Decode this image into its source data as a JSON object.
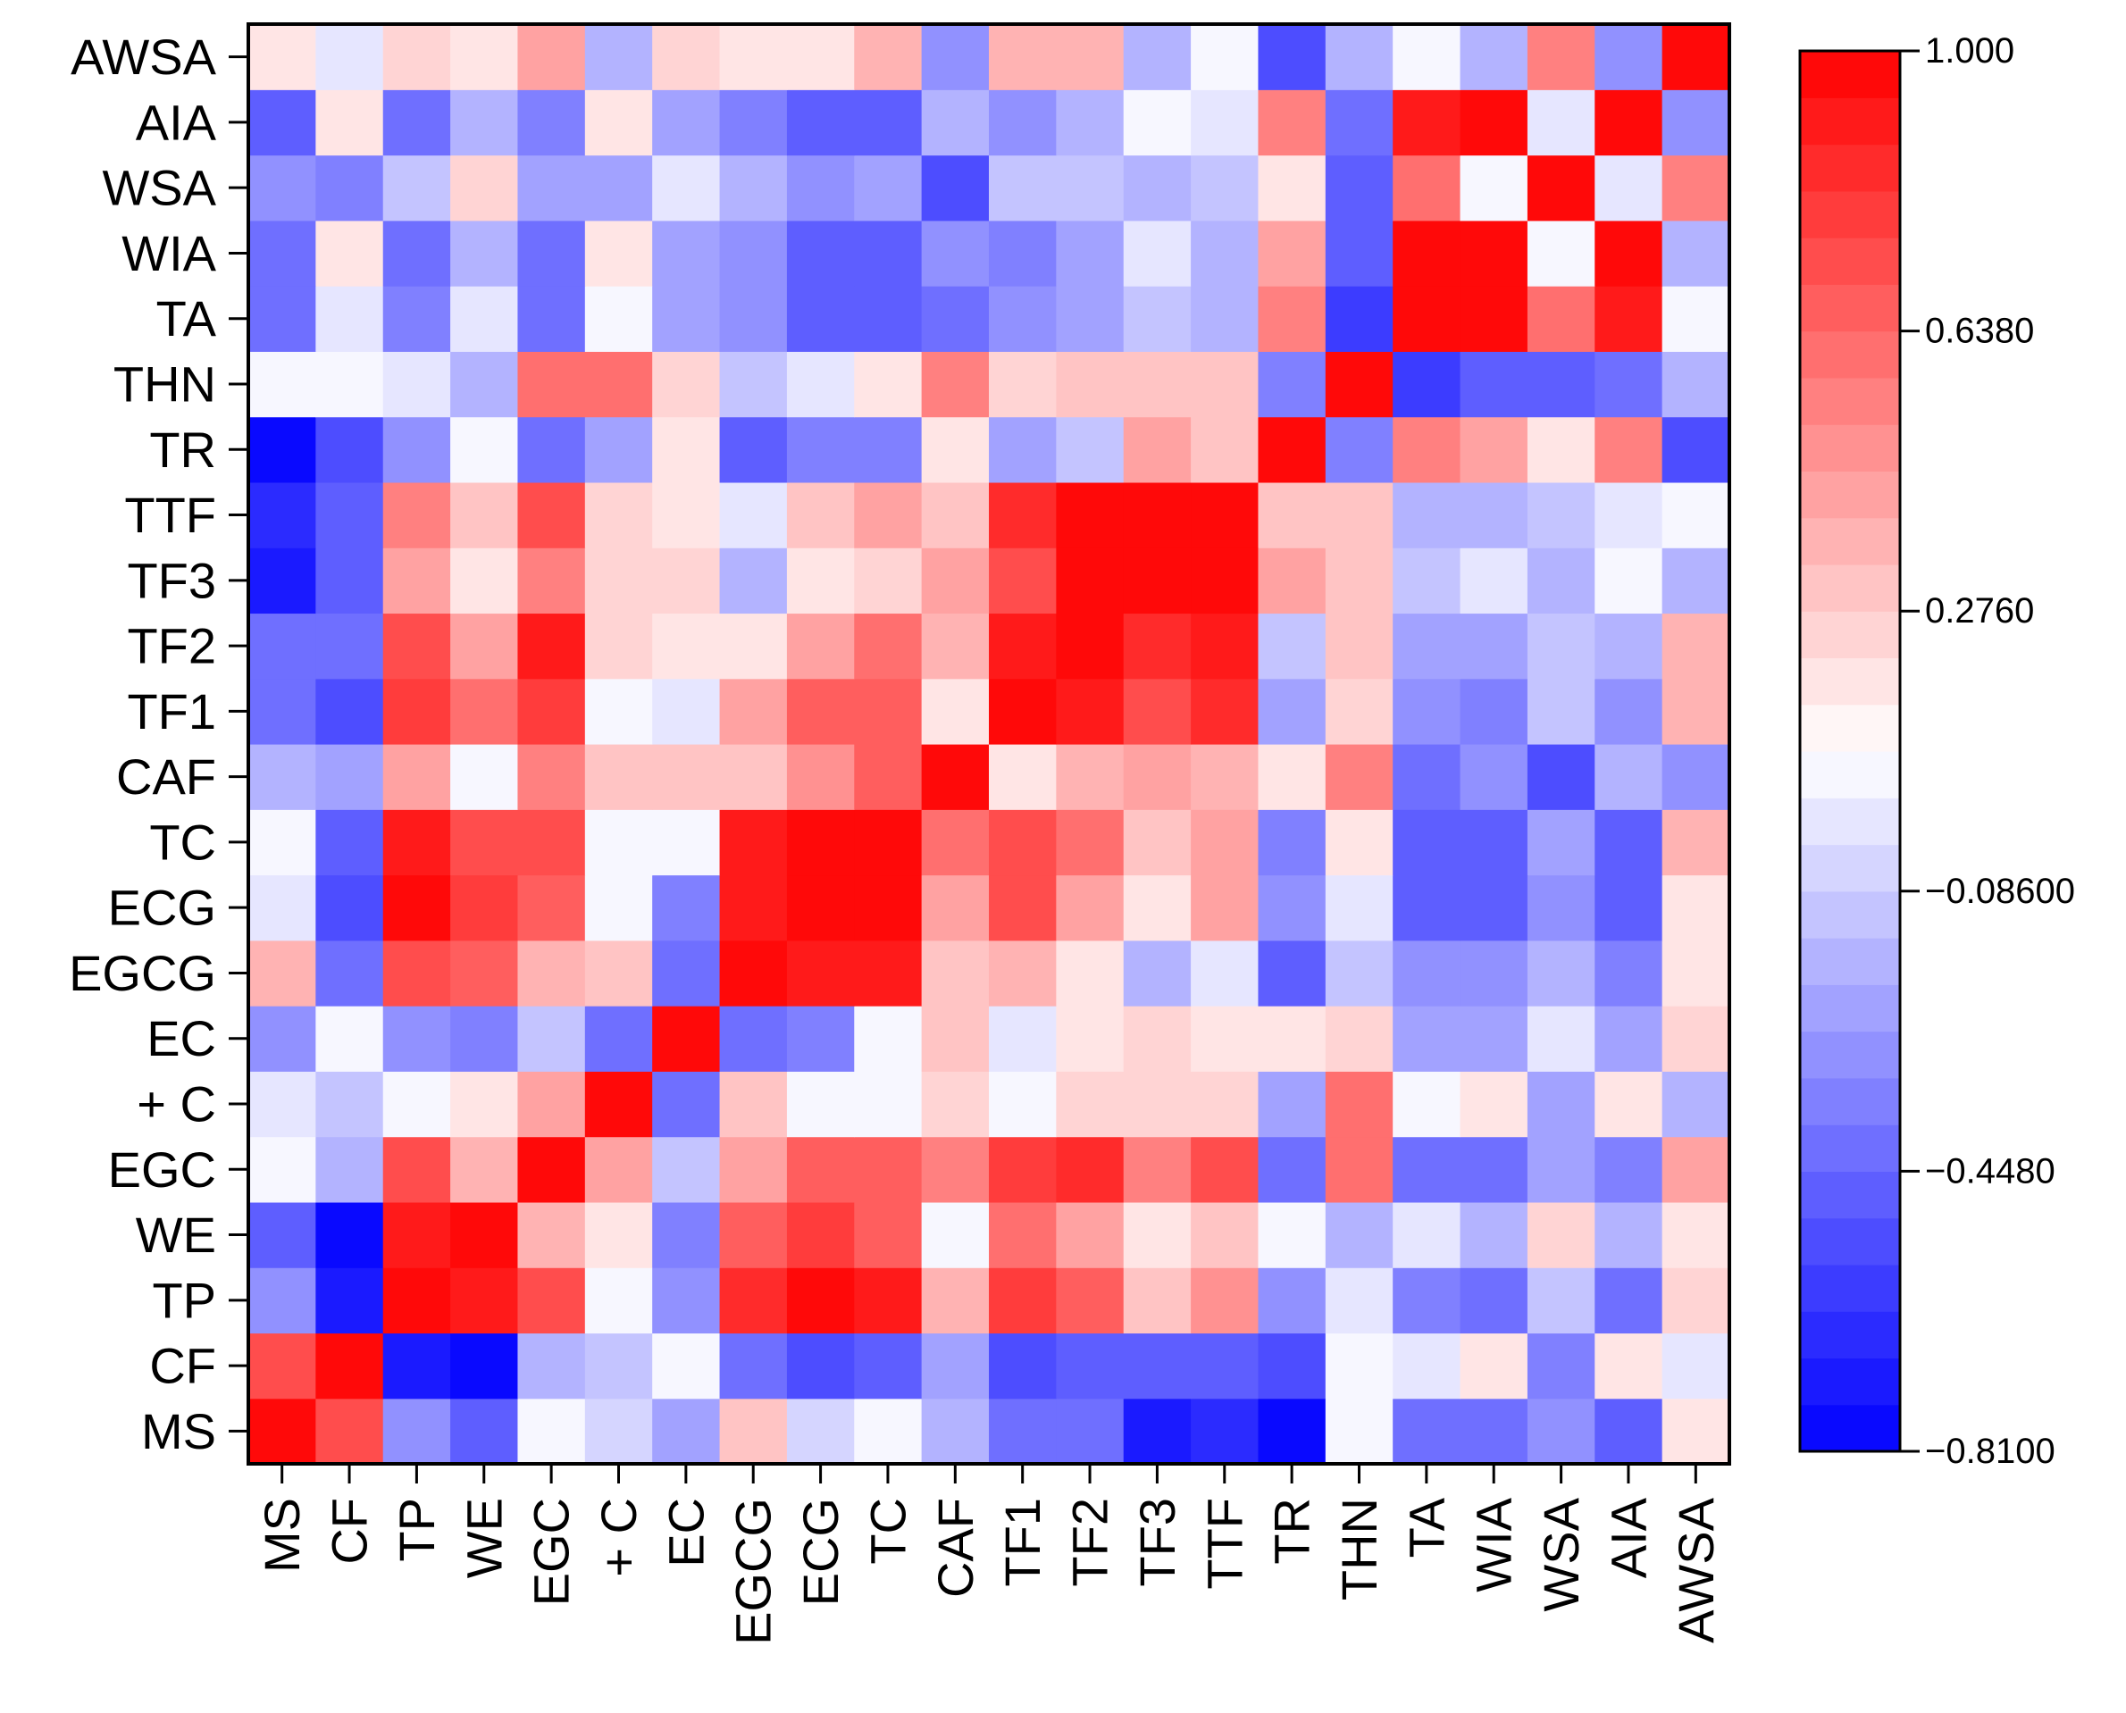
{
  "chart_data": {
    "type": "heatmap",
    "title": "",
    "xlabel": "",
    "ylabel": "",
    "x": [
      "MS",
      "CF",
      "TP",
      "WE",
      "EGC",
      "+ C",
      "EC",
      "EGCG",
      "ECG",
      "TC",
      "CAF",
      "TF1",
      "TF2",
      "TF3",
      "TTF",
      "TR",
      "THN",
      "TA",
      "WIA",
      "WSA",
      "AIA",
      "AWSA"
    ],
    "y": [
      "MS",
      "CF",
      "TP",
      "WE",
      "EGC",
      "+ C",
      "EC",
      "EGCG",
      "ECG",
      "TC",
      "CAF",
      "TF1",
      "TF2",
      "TF3",
      "TTF",
      "TR",
      "THN",
      "TA",
      "WIA",
      "WSA",
      "AIA",
      "AWSA"
    ],
    "values": [
      [
        1.0,
        0.72,
        -0.3,
        -0.45,
        0.08,
        -0.05,
        -0.22,
        0.32,
        -0.05,
        0.08,
        -0.18,
        -0.42,
        -0.42,
        -0.7,
        -0.65,
        -0.81,
        0.08,
        -0.42,
        -0.42,
        -0.3,
        -0.5,
        0.2
      ],
      [
        0.72,
        1.0,
        -0.7,
        -0.75,
        -0.18,
        -0.1,
        0.08,
        -0.4,
        -0.52,
        -0.45,
        -0.22,
        -0.55,
        -0.45,
        -0.45,
        -0.45,
        -0.52,
        0.08,
        0.0,
        0.18,
        -0.35,
        0.18,
        0.0
      ],
      [
        -0.3,
        -0.7,
        1.0,
        0.9,
        0.72,
        0.08,
        -0.3,
        0.82,
        0.95,
        0.88,
        0.35,
        0.8,
        0.68,
        0.32,
        0.48,
        -0.3,
        0.0,
        -0.35,
        -0.42,
        -0.1,
        -0.42,
        0.22
      ],
      [
        -0.45,
        -0.75,
        0.9,
        1.0,
        0.38,
        0.18,
        -0.35,
        0.68,
        0.78,
        0.66,
        0.05,
        0.58,
        0.4,
        0.18,
        0.3,
        0.05,
        -0.18,
        0.0,
        -0.18,
        0.25,
        -0.18,
        0.18
      ],
      [
        0.08,
        -0.18,
        0.72,
        0.38,
        1.0,
        0.45,
        -0.1,
        0.42,
        0.68,
        0.68,
        0.52,
        0.78,
        0.84,
        0.55,
        0.72,
        -0.42,
        0.62,
        -0.42,
        -0.42,
        -0.25,
        -0.35,
        0.45
      ],
      [
        0.0,
        -0.1,
        0.08,
        0.18,
        0.45,
        1.0,
        -0.42,
        0.32,
        0.05,
        0.05,
        0.25,
        0.05,
        0.22,
        0.22,
        0.22,
        -0.22,
        0.62,
        0.08,
        0.18,
        -0.22,
        0.18,
        -0.15
      ],
      [
        -0.3,
        0.08,
        -0.3,
        -0.35,
        -0.1,
        -0.42,
        1.0,
        -0.42,
        -0.35,
        0.08,
        0.28,
        0.0,
        0.18,
        0.22,
        0.18,
        0.18,
        0.25,
        -0.22,
        -0.25,
        0.0,
        -0.22,
        0.25
      ],
      [
        0.35,
        -0.4,
        0.75,
        0.64,
        0.36,
        0.32,
        -0.42,
        1.0,
        0.9,
        0.9,
        0.32,
        0.38,
        0.18,
        -0.18,
        0.0,
        -0.45,
        -0.1,
        -0.3,
        -0.3,
        -0.18,
        -0.35,
        0.18
      ],
      [
        0.0,
        -0.52,
        0.95,
        0.78,
        0.68,
        0.05,
        -0.35,
        0.9,
        1.0,
        0.95,
        0.42,
        0.7,
        0.45,
        0.18,
        0.4,
        -0.3,
        0.0,
        -0.45,
        -0.45,
        -0.3,
        -0.45,
        0.18
      ],
      [
        0.08,
        -0.45,
        0.9,
        0.72,
        0.72,
        0.05,
        0.08,
        0.92,
        0.97,
        1.0,
        0.62,
        0.7,
        0.62,
        0.28,
        0.45,
        -0.35,
        0.18,
        -0.45,
        -0.45,
        -0.25,
        -0.45,
        0.38
      ],
      [
        -0.18,
        -0.22,
        0.42,
        0.05,
        0.55,
        0.28,
        0.32,
        0.32,
        0.48,
        0.65,
        1.0,
        0.18,
        0.35,
        0.42,
        0.38,
        0.18,
        0.55,
        -0.42,
        -0.3,
        -0.52,
        -0.18,
        -0.3
      ],
      [
        -0.42,
        -0.55,
        0.78,
        0.58,
        0.8,
        0.05,
        0.0,
        0.42,
        0.68,
        0.68,
        0.18,
        1.0,
        0.9,
        0.72,
        0.85,
        -0.22,
        0.25,
        -0.3,
        -0.35,
        -0.1,
        -0.3,
        0.38
      ],
      [
        -0.42,
        -0.42,
        0.72,
        0.4,
        0.88,
        0.22,
        0.18,
        0.18,
        0.45,
        0.62,
        0.35,
        0.92,
        1.0,
        0.82,
        0.92,
        -0.1,
        0.32,
        -0.22,
        -0.22,
        -0.1,
        -0.18,
        0.38
      ],
      [
        -0.7,
        -0.45,
        0.42,
        0.18,
        0.52,
        0.22,
        0.22,
        -0.18,
        0.18,
        0.25,
        0.4,
        0.72,
        0.96,
        1.0,
        1.0,
        0.42,
        0.28,
        -0.1,
        0.0,
        -0.18,
        0.05,
        -0.18
      ],
      [
        -0.65,
        -0.45,
        0.52,
        0.3,
        0.75,
        0.22,
        0.18,
        0.0,
        0.32,
        0.4,
        0.32,
        0.86,
        0.98,
        1.0,
        1.0,
        0.28,
        0.28,
        -0.18,
        -0.18,
        -0.1,
        0.0,
        0.05
      ],
      [
        -0.81,
        -0.52,
        -0.3,
        0.05,
        -0.42,
        -0.22,
        0.18,
        -0.45,
        -0.35,
        -0.35,
        0.18,
        -0.22,
        -0.1,
        0.42,
        0.28,
        1.0,
        -0.35,
        0.55,
        0.45,
        0.18,
        0.55,
        -0.52
      ],
      [
        0.08,
        0.08,
        0.0,
        -0.18,
        0.62,
        0.62,
        0.25,
        -0.1,
        0.0,
        0.18,
        0.55,
        0.25,
        0.32,
        0.28,
        0.28,
        -0.35,
        1.0,
        -0.62,
        -0.45,
        -0.45,
        -0.42,
        -0.18
      ],
      [
        -0.42,
        0.0,
        -0.35,
        0.0,
        -0.42,
        0.08,
        -0.22,
        -0.3,
        -0.45,
        -0.45,
        -0.42,
        -0.3,
        -0.22,
        -0.1,
        -0.18,
        0.55,
        -0.62,
        1.0,
        0.95,
        0.62,
        0.9,
        0.08
      ],
      [
        -0.42,
        0.18,
        -0.42,
        -0.18,
        -0.42,
        0.18,
        -0.25,
        -0.3,
        -0.45,
        -0.45,
        -0.3,
        -0.35,
        -0.22,
        0.0,
        -0.18,
        0.45,
        -0.45,
        0.95,
        1.0,
        0.05,
        1.0,
        -0.18
      ],
      [
        -0.3,
        -0.35,
        -0.1,
        0.25,
        -0.25,
        -0.22,
        0.0,
        -0.18,
        -0.3,
        -0.25,
        -0.52,
        -0.1,
        -0.1,
        -0.18,
        -0.1,
        0.18,
        -0.45,
        0.62,
        0.05,
        1.0,
        0.0,
        0.55
      ],
      [
        -0.5,
        0.18,
        -0.42,
        -0.18,
        -0.35,
        0.18,
        -0.22,
        -0.35,
        -0.45,
        -0.45,
        -0.18,
        -0.3,
        -0.18,
        0.05,
        0.0,
        0.55,
        -0.42,
        0.9,
        1.0,
        0.0,
        1.0,
        -0.3
      ],
      [
        0.2,
        0.0,
        0.22,
        0.18,
        0.45,
        -0.15,
        0.25,
        0.18,
        0.18,
        0.38,
        -0.3,
        0.38,
        0.38,
        -0.18,
        0.05,
        -0.52,
        -0.18,
        0.08,
        -0.18,
        0.55,
        -0.3,
        1.0
      ]
    ],
    "y_order": "bottom-to-top",
    "colorbar": {
      "min": -0.81,
      "max": 1.0,
      "ticks": [
        1.0,
        0.638,
        0.276,
        -0.086,
        -0.448,
        -0.81
      ],
      "tick_labels": [
        "1.000",
        "0.6380",
        "0.2760",
        "−0.08600",
        "−0.4480",
        "−0.8100"
      ],
      "levels": 30,
      "colors": {
        "low": "#0000ff",
        "mid": "#ffffff",
        "high": "#ff0000"
      }
    },
    "grid": false,
    "legend": "right"
  }
}
